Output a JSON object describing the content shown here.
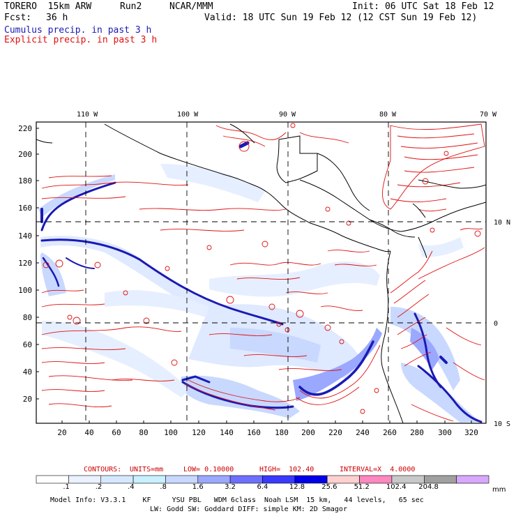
{
  "header": {
    "model": "TORERO  15km ARW",
    "run": "Run2",
    "org": "NCAR/MMM",
    "init": "Init: 06 UTC Sat 18 Feb 12",
    "fcst_label": "Fcst:",
    "fcst_value": "36 h",
    "valid": "Valid: 18 UTC Sun 19 Feb 12 (12 CST Sun 19 Feb 12)",
    "legend_cumulus": "Cumulus precip. in past 3 h",
    "legend_explicit": "Explicit precip. in past 3 h"
  },
  "map": {
    "lon_labels": [
      "110 W",
      "100 W",
      "90 W",
      "80 W",
      "70 W"
    ],
    "lat_labels": [
      "10 N",
      "0",
      "10 S"
    ],
    "y_ticks": [
      "220",
      "200",
      "180",
      "160",
      "140",
      "120",
      "100",
      "80",
      "60",
      "40",
      "20"
    ],
    "x_ticks": [
      "20",
      "40",
      "60",
      "80",
      "100",
      "120",
      "140",
      "160",
      "180",
      "200",
      "220",
      "240",
      "260",
      "280",
      "300",
      "320"
    ]
  },
  "contours": {
    "title": "CONTOURS:",
    "units": "UNITS=mm",
    "low": "LOW= 0.10000",
    "high": "HIGH=  102.40",
    "interval": "INTERVAL=X  4.0000"
  },
  "colorbar": {
    "labels": [
      ".1",
      ".2",
      ".4",
      ".8",
      "1.6",
      "3.2",
      "6.4",
      "12.8",
      "25.6",
      "51.2",
      "102.4",
      "204.8"
    ],
    "unit": "mm",
    "colors": [
      "#ffffff",
      "#eaf2ff",
      "#d6e8ff",
      "#c8f0ff",
      "#c8d8ff",
      "#9aa8ff",
      "#6f6fff",
      "#3a3aff",
      "#0000e8",
      "#ffd0d0",
      "#ff88c0",
      "#c8c8c8",
      "#a0a0a0",
      "#d8a8ff"
    ]
  },
  "footer": {
    "line1": "Model Info: V3.3.1    KF     YSU PBL   WDM 6class  Noah LSM  15 km,   44 levels,   65 sec",
    "line2": "LW: Godd SW: Goddard DIFF: simple KM: 2D Smagor"
  },
  "colors": {
    "cumulus": "#1a1ab4",
    "explicit": "#e01010",
    "coast": "#000000"
  }
}
